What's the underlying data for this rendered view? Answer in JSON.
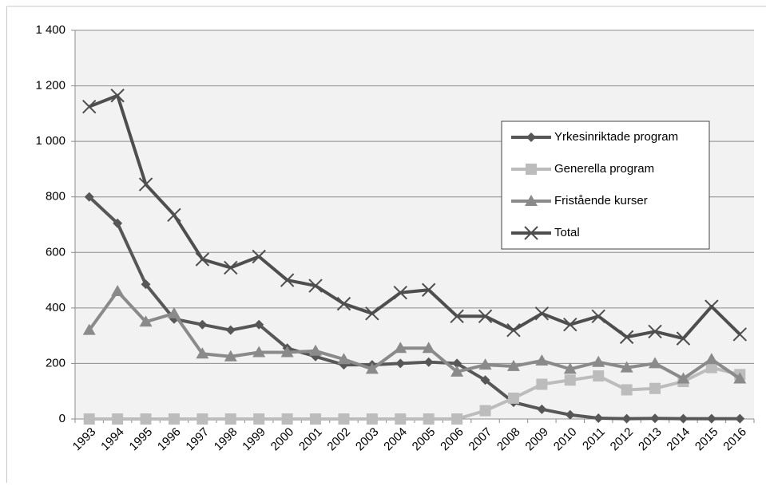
{
  "chart_data": {
    "type": "line",
    "categories": [
      "1993",
      "1994",
      "1995",
      "1996",
      "1997",
      "1998",
      "1999",
      "2000",
      "2001",
      "2002",
      "2003",
      "2004",
      "2005",
      "2006",
      "2007",
      "2008",
      "2009",
      "2010",
      "2011",
      "2012",
      "2013",
      "2014",
      "2015",
      "2016"
    ],
    "series": [
      {
        "name": "Yrkesinriktade program",
        "color": "#575757",
        "marker": "diamond",
        "values": [
          800,
          705,
          485,
          360,
          340,
          320,
          340,
          255,
          225,
          195,
          195,
          200,
          205,
          200,
          140,
          60,
          35,
          15,
          3,
          1,
          2,
          1,
          1,
          1
        ]
      },
      {
        "name": "Generella program",
        "color": "#bcbcbc",
        "marker": "square",
        "values": [
          0,
          0,
          0,
          0,
          0,
          0,
          0,
          0,
          0,
          0,
          0,
          0,
          0,
          0,
          30,
          75,
          125,
          140,
          155,
          105,
          110,
          135,
          185,
          160
        ]
      },
      {
        "name": "Fristående kurser",
        "color": "#8a8a8a",
        "marker": "triangle",
        "values": [
          320,
          460,
          350,
          380,
          235,
          225,
          240,
          240,
          245,
          215,
          180,
          255,
          255,
          170,
          195,
          190,
          210,
          180,
          205,
          185,
          200,
          145,
          215,
          145
        ]
      },
      {
        "name": "Total",
        "color": "#4e4e4e",
        "marker": "x",
        "values": [
          1125,
          1165,
          845,
          735,
          575,
          545,
          585,
          500,
          480,
          415,
          380,
          455,
          465,
          370,
          370,
          320,
          380,
          340,
          370,
          295,
          315,
          290,
          405,
          305
        ]
      }
    ],
    "ylim": [
      0,
      1400
    ],
    "yticks": [
      0,
      200,
      400,
      600,
      800,
      {
        "value": 1000,
        "label": "1 000"
      },
      {
        "value": 1200,
        "label": "1 200"
      },
      {
        "value": 1400,
        "label": "1 400"
      }
    ],
    "grid": true,
    "legend": "right"
  }
}
